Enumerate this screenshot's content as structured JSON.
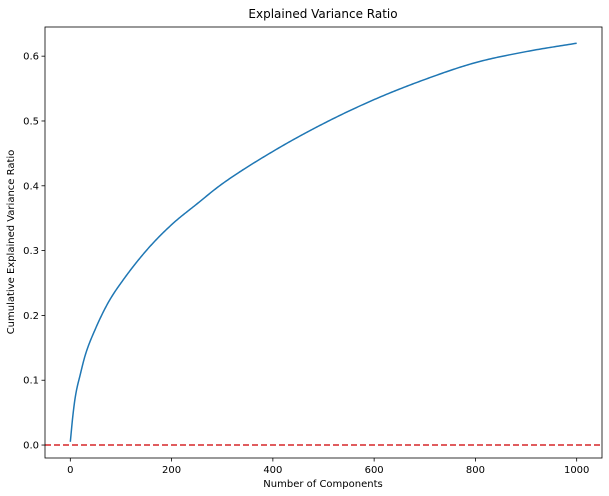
{
  "chart_data": {
    "type": "line",
    "title": "Explained Variance Ratio",
    "xlabel": "Number of Components",
    "ylabel": "Cumulative Explained Variance Ratio",
    "xlim": [
      -50,
      1050
    ],
    "ylim": [
      -0.02,
      0.645
    ],
    "xticks": [
      0,
      200,
      400,
      600,
      800,
      1000
    ],
    "xtick_labels": [
      "0",
      "200",
      "400",
      "600",
      "800",
      "1000"
    ],
    "yticks": [
      0.0,
      0.1,
      0.2,
      0.3,
      0.4,
      0.5,
      0.6
    ],
    "ytick_labels": [
      "0.0",
      "0.1",
      "0.2",
      "0.3",
      "0.4",
      "0.5",
      "0.6"
    ],
    "grid": false,
    "series": [
      {
        "color": "#1f77b4",
        "style": "solid",
        "x": [
          0,
          5,
          10,
          20,
          30,
          50,
          75,
          100,
          150,
          200,
          250,
          300,
          400,
          500,
          600,
          700,
          800,
          900,
          1000
        ],
        "y": [
          0.005,
          0.045,
          0.075,
          0.11,
          0.14,
          0.18,
          0.22,
          0.25,
          0.3,
          0.34,
          0.372,
          0.403,
          0.453,
          0.496,
          0.533,
          0.564,
          0.59,
          0.607,
          0.62
        ]
      }
    ],
    "reference_lines": [
      {
        "orientation": "horizontal",
        "y": 0.0,
        "color": "#d62728",
        "style": "dashed"
      }
    ]
  }
}
